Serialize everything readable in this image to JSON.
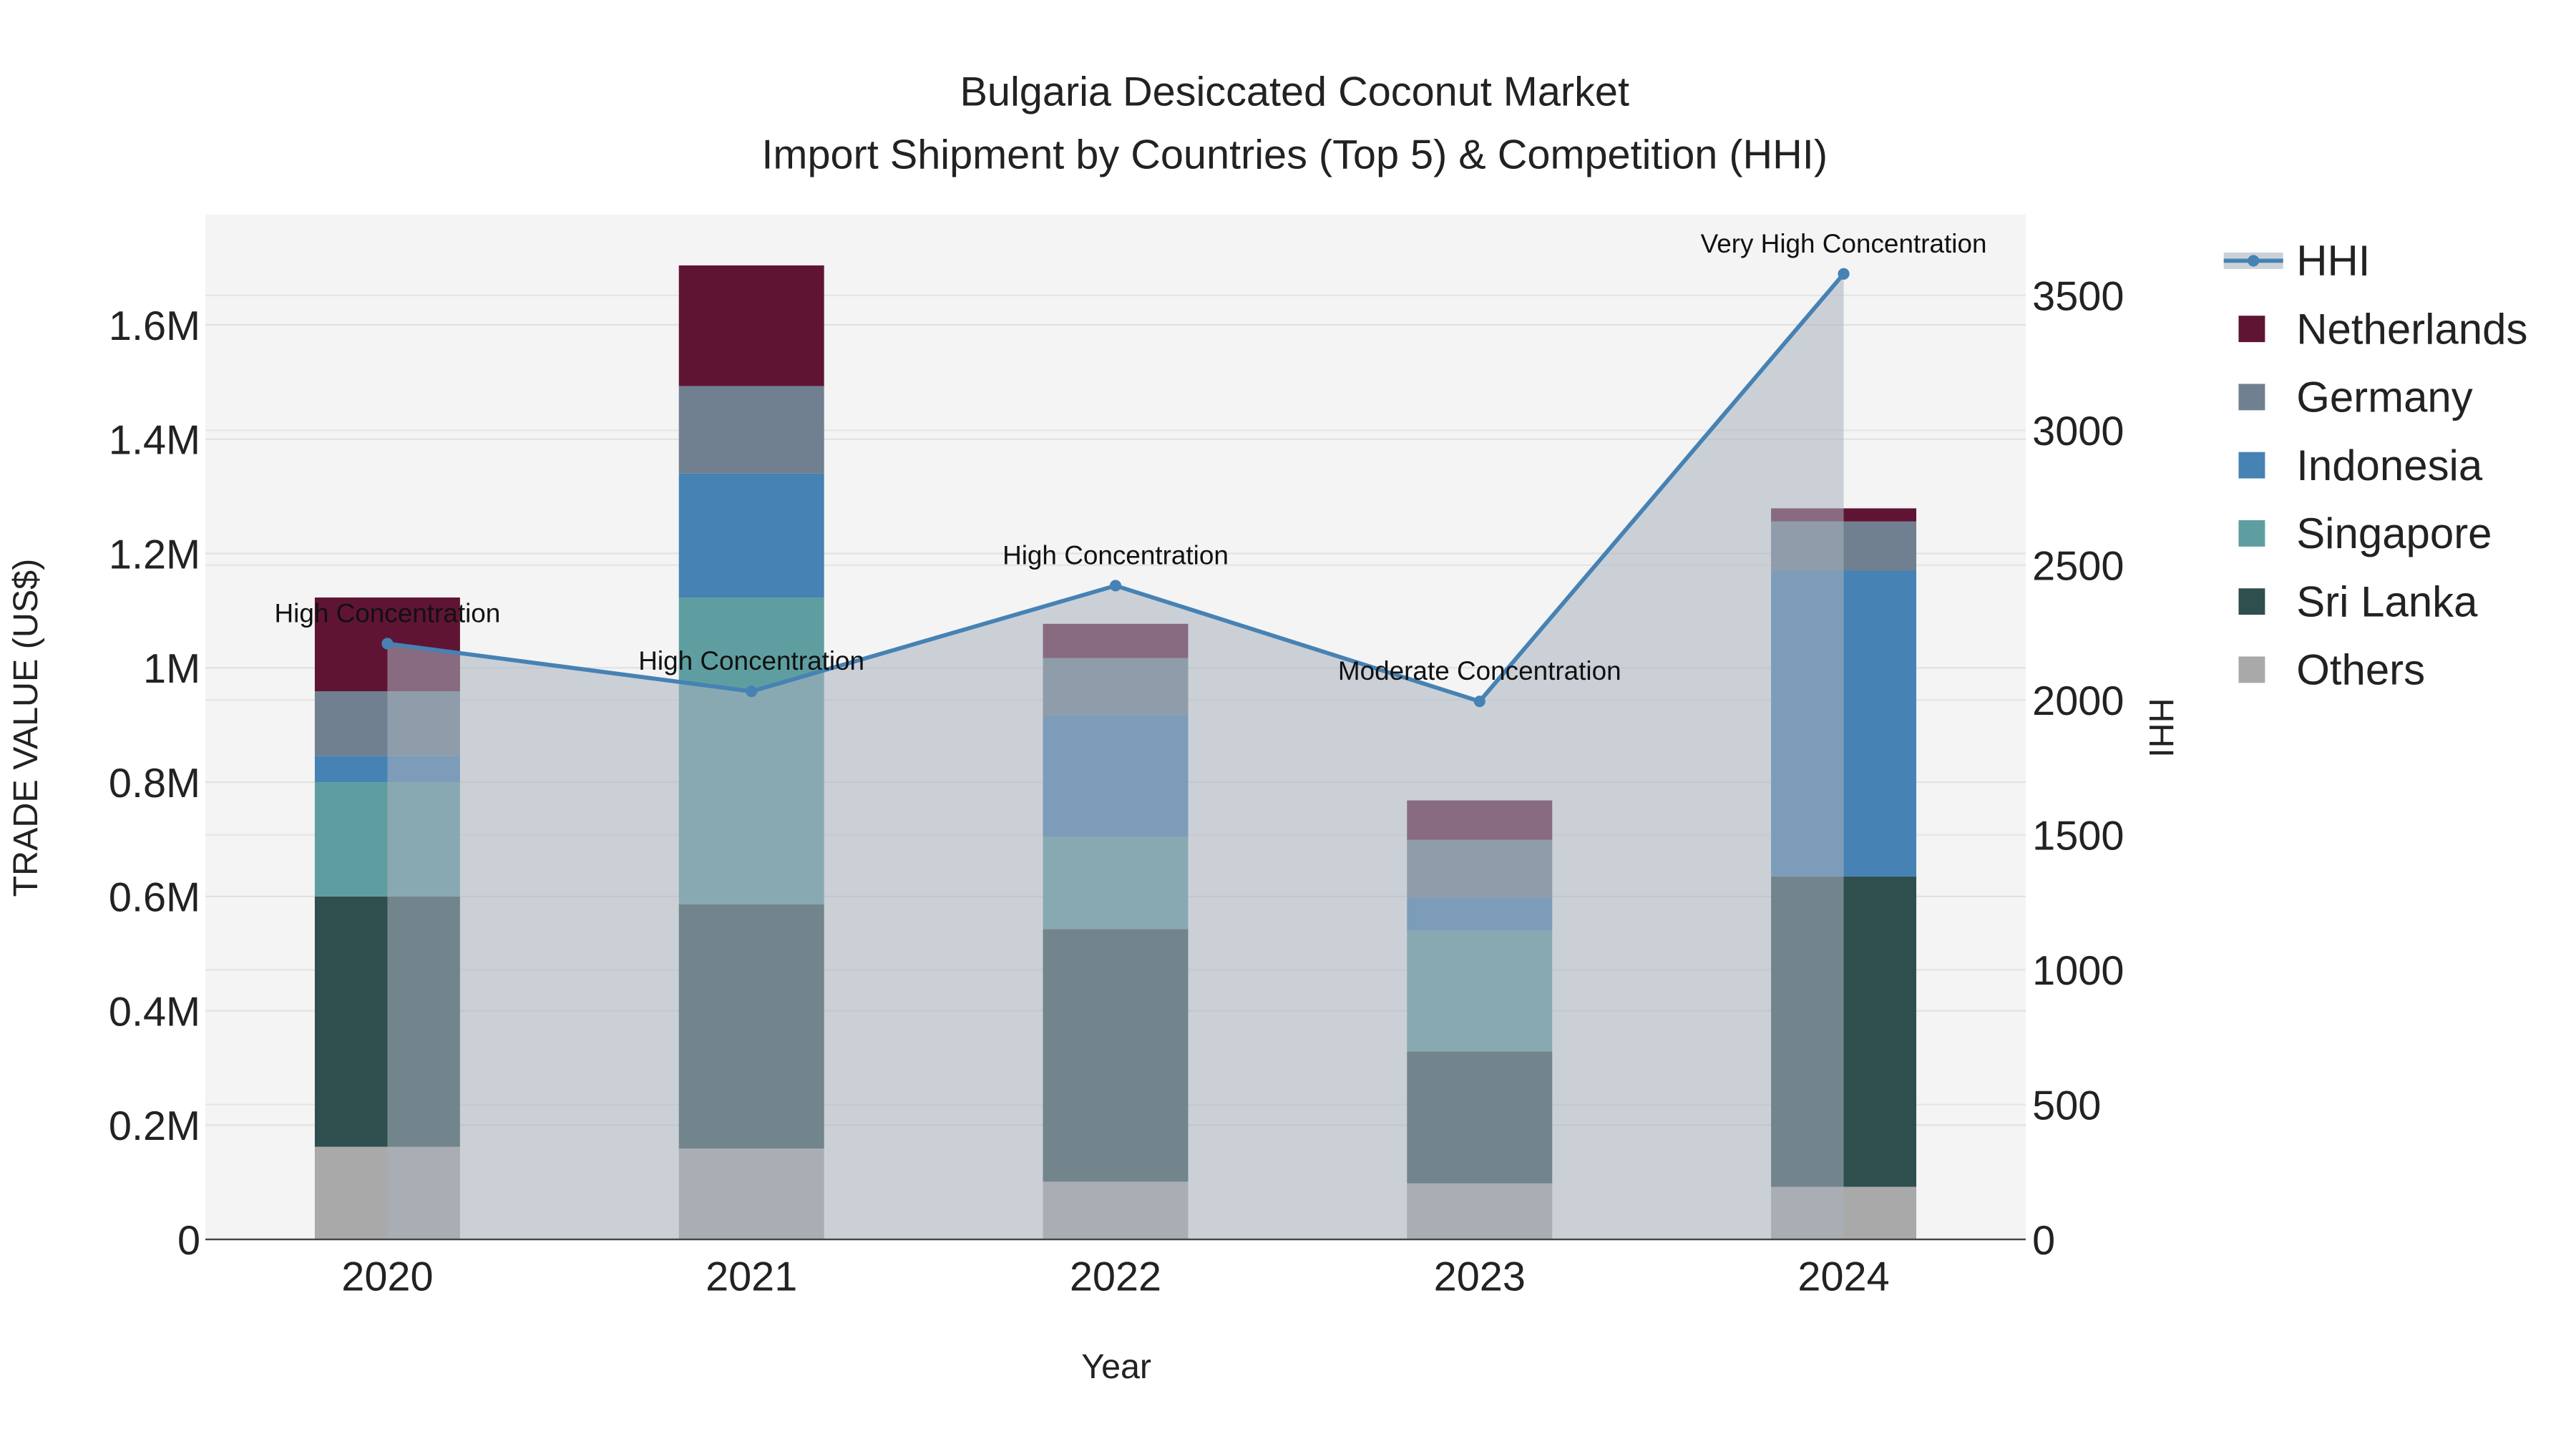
{
  "chart_data": {
    "type": "bar",
    "title_line1": "Bulgaria Desiccated Coconut Market",
    "title_line2": "Import Shipment by Countries (Top 5) & Competition (HHI)",
    "xlabel": "Year",
    "ylabel": "TRADE VALUE (US$)",
    "y2label": "HHI",
    "categories": [
      "2020",
      "2021",
      "2022",
      "2023",
      "2024"
    ],
    "ylim": [
      0,
      1793000
    ],
    "y2lim": [
      0,
      3800
    ],
    "yticks": [
      {
        "v": 0,
        "label": "0"
      },
      {
        "v": 200000,
        "label": "0.2M"
      },
      {
        "v": 400000,
        "label": "0.4M"
      },
      {
        "v": 600000,
        "label": "0.6M"
      },
      {
        "v": 800000,
        "label": "0.8M"
      },
      {
        "v": 1000000,
        "label": "1M"
      },
      {
        "v": 1200000,
        "label": "1.2M"
      },
      {
        "v": 1400000,
        "label": "1.4M"
      },
      {
        "v": 1600000,
        "label": "1.6M"
      }
    ],
    "y2ticks": [
      {
        "v": 0,
        "label": "0"
      },
      {
        "v": 500,
        "label": "500"
      },
      {
        "v": 1000,
        "label": "1000"
      },
      {
        "v": 1500,
        "label": "1500"
      },
      {
        "v": 2000,
        "label": "2000"
      },
      {
        "v": 2500,
        "label": "2500"
      },
      {
        "v": 3000,
        "label": "3000"
      },
      {
        "v": 3500,
        "label": "3500"
      }
    ],
    "stacked": true,
    "series": [
      {
        "name": "Others",
        "color": "#A9A9A9",
        "values": [
          162000,
          159000,
          101000,
          98000,
          92000
        ]
      },
      {
        "name": "Sri Lanka",
        "color": "#2F4F4F",
        "values": [
          438000,
          427000,
          442000,
          231000,
          543000
        ]
      },
      {
        "name": "Singapore",
        "color": "#5F9EA0",
        "values": [
          200000,
          537000,
          162000,
          211000,
          0
        ]
      },
      {
        "name": "Indonesia",
        "color": "#4682B4",
        "values": [
          46000,
          217000,
          211000,
          58000,
          535000
        ]
      },
      {
        "name": "Germany",
        "color": "#708090",
        "values": [
          113000,
          153000,
          101000,
          101000,
          86000
        ]
      },
      {
        "name": "Netherlands",
        "color": "#601434",
        "values": [
          164000,
          211000,
          60000,
          69000,
          23000
        ]
      }
    ],
    "hhi": {
      "name": "HHI",
      "color": "#4682B4",
      "values": [
        2209,
        2032,
        2424,
        1995,
        3580
      ],
      "annotations": [
        "High Concentration",
        "High Concentration",
        "High Concentration",
        "Moderate Concentration",
        "Very High Concentration"
      ]
    },
    "legend": [
      "HHI",
      "Netherlands",
      "Germany",
      "Indonesia",
      "Singapore",
      "Sri Lanka",
      "Others"
    ],
    "legend_position": "right",
    "grid": true
  }
}
